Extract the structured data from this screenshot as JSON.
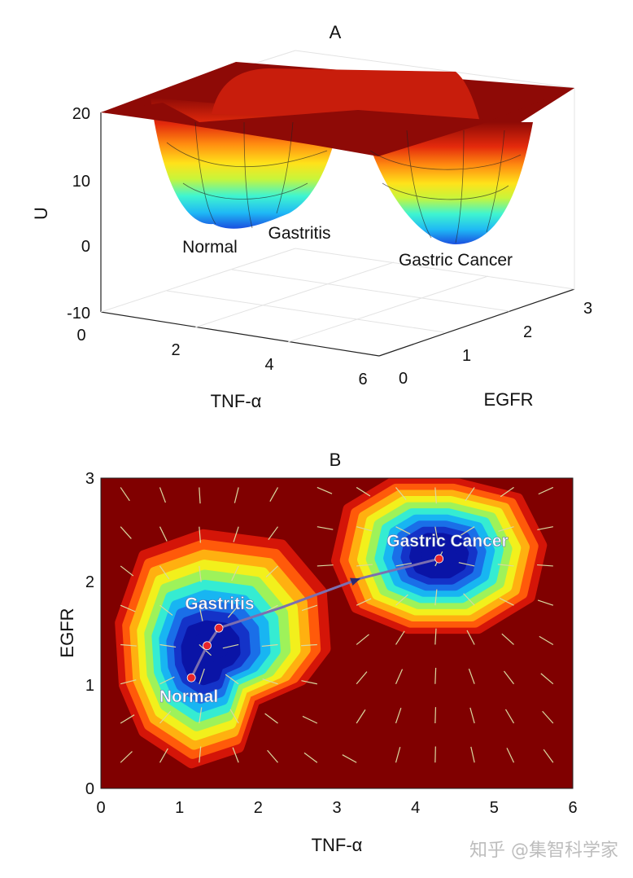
{
  "chart_data": [
    {
      "panel": "A",
      "type": "surface",
      "title": "A",
      "xlabel": "TNF-α",
      "ylabel": "EGFR",
      "zlabel": "U",
      "xlim": [
        0,
        6
      ],
      "ylim": [
        0,
        3
      ],
      "zlim": [
        -10,
        20
      ],
      "x_ticks": [
        "0",
        "2",
        "4",
        "6"
      ],
      "y_ticks": [
        "0",
        "1",
        "2",
        "3"
      ],
      "z_ticks": [
        "20",
        "10",
        "0",
        "-10"
      ],
      "grid": true,
      "colormap": "jet",
      "basins": [
        {
          "label": "Normal",
          "x": 1.1,
          "y": 1.05,
          "depth": 3
        },
        {
          "label": "Gastritis",
          "x": 1.5,
          "y": 1.55,
          "depth": 3.5
        },
        {
          "label": "Gastric Cancer",
          "x": 4.3,
          "y": 2.2,
          "depth": 2
        }
      ],
      "plateau_value": 20
    },
    {
      "panel": "B",
      "type": "heatmap",
      "title": "B",
      "xlabel": "TNF-α",
      "ylabel": "EGFR",
      "xlim": [
        0,
        6
      ],
      "ylim": [
        0,
        3
      ],
      "x_ticks": [
        "0",
        "1",
        "2",
        "3",
        "4",
        "5",
        "6"
      ],
      "y_ticks": [
        "0",
        "1",
        "2",
        "3"
      ],
      "colormap": "jet",
      "basins": [
        {
          "label": "Normal",
          "x": 1.15,
          "y": 1.07
        },
        {
          "label": "Gastritis",
          "x": 1.5,
          "y": 1.55
        },
        {
          "label": "Gastric Cancer",
          "x": 4.3,
          "y": 2.22
        }
      ],
      "transition_path": [
        {
          "x": 1.15,
          "y": 1.07
        },
        {
          "x": 1.35,
          "y": 1.38
        },
        {
          "x": 1.5,
          "y": 1.55
        },
        {
          "x": 2.3,
          "y": 1.75
        },
        {
          "x": 3.3,
          "y": 2.03
        },
        {
          "x": 4.3,
          "y": 2.22
        }
      ],
      "path_color": "#7b6fb0",
      "point_color": "#e8262b"
    }
  ],
  "watermark": "知乎 @集智科学家"
}
